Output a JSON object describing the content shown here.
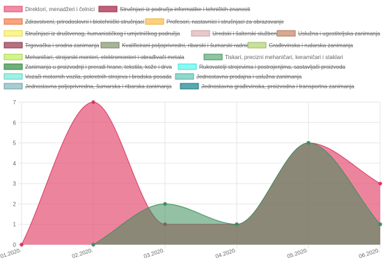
{
  "chart_data": {
    "type": "area",
    "categories": [
      "01.2020.",
      "02.2020.",
      "03.2020.",
      "04.2020.",
      "05.2020.",
      "06.2020."
    ],
    "ylim": [
      0,
      7
    ],
    "yticks": [
      0,
      1,
      2,
      3,
      4,
      5,
      6,
      7
    ],
    "grid": true,
    "legend_position": "top",
    "legend": [
      {
        "label": "Direktori, menadžeri i čelnici",
        "color": "#f08ca5",
        "border": "#e0506f",
        "hidden": false
      },
      {
        "label": "Stručnjaci iz područja informatike i tehničkih znanosti",
        "color": "#c0607a",
        "border": "#9c2b45",
        "hidden": true
      },
      {
        "label": "Zdravstveni, prirodoslovni i biotehnički stručnjaci",
        "color": "#f9a47a",
        "border": "#e0704a",
        "hidden": true
      },
      {
        "label": "Profesori, nastavnici i stručnjaci za obrazovanje",
        "color": "#fdd17a",
        "border": "#e8b040",
        "hidden": true
      },
      {
        "label": "Stručnjaci iz društvenog, humanističkog i umjetničkog područja",
        "color": "#fbf58a",
        "border": "#e2d84a",
        "hidden": true
      },
      {
        "label": "Uredski i šalterski službenici",
        "color": "#e8c8c8",
        "border": "#c9a0a0",
        "hidden": true
      },
      {
        "label": "Uslužna i ugostiteljska zanimanja",
        "color": "#d8a890",
        "border": "#b07a60",
        "hidden": true
      },
      {
        "label": "Trgovačka i srodna zanimanja",
        "color": "#b8707e",
        "border": "#8c3a4c",
        "hidden": true
      },
      {
        "label": "Kvalificirani poljoprivredni, ribarski i šumarski radnici",
        "color": "#a8b498",
        "border": "#76846a",
        "hidden": true
      },
      {
        "label": "Građevinska i rudarska zanimanja",
        "color": "#c8e09a",
        "border": "#98b868",
        "hidden": true
      },
      {
        "label": "Mehaničari, strojarski monteri, elektromonteri i obrađivači metala",
        "color": "#d2f58a",
        "border": "#a8d050",
        "hidden": true
      },
      {
        "label": "Tiskari, precizni mehaničari, keramičari i staklari",
        "color": "#8ec4a0",
        "border": "#3e9060",
        "hidden": false
      },
      {
        "label": "Zanimanja u proizvodnji i preradi hrane, tekstila, kože i drva",
        "color": "#70b078",
        "border": "#3a8048",
        "hidden": true
      },
      {
        "label": "Rukovatelji strojevima i postrojenjima, sastavljači proizvoda",
        "color": "#8afaf5",
        "border": "#40e0d8",
        "hidden": true
      },
      {
        "label": "Vozači motornih vozila, pokretnih strojeva i brodska posada",
        "color": "#a0f0e4",
        "border": "#60d0c0",
        "hidden": true
      },
      {
        "label": "Jednostavna prodajna i uslužna zanimanja",
        "color": "#90d8cc",
        "border": "#50b0a0",
        "hidden": true
      },
      {
        "label": "Jednostavna poljoprivredna, šumarska i ribarska zanimanja",
        "color": "#a8ccd0",
        "border": "#70a0a8",
        "hidden": true
      },
      {
        "label": "Jednostavna građevinska, proizvodna i transportna zanimanja",
        "color": "#58a8b0",
        "border": "#207880",
        "hidden": true
      }
    ],
    "series": [
      {
        "name": "Direktori, menadžeri i čelnici",
        "values": [
          0,
          7,
          1,
          1,
          5,
          3
        ],
        "fill": "rgba(230,80,115,0.70)",
        "stroke": "#d63a60"
      },
      {
        "name": "Tiskari, precizni mehaničari, keramičari i staklari",
        "values": [
          null,
          0,
          2,
          1,
          5,
          1
        ],
        "fill": "rgba(60,140,90,0.55)",
        "stroke": "#3e9060"
      }
    ]
  }
}
